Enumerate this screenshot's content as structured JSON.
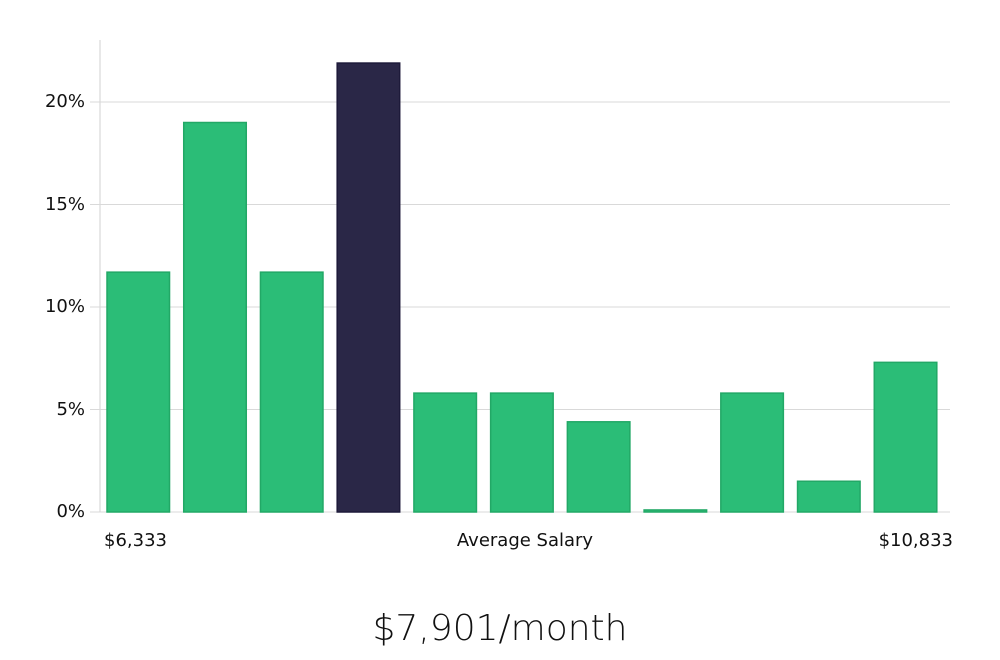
{
  "chart_data": {
    "type": "bar",
    "title": "",
    "xlabel": "Average Salary",
    "ylabel": "",
    "categories": [
      "bin1",
      "bin2",
      "bin3",
      "bin4",
      "bin5",
      "bin6",
      "bin7",
      "bin8",
      "bin9",
      "bin10",
      "bin11"
    ],
    "values": [
      11.7,
      19.0,
      11.7,
      21.9,
      5.8,
      5.8,
      4.4,
      0.1,
      5.8,
      1.5,
      7.3
    ],
    "highlight_index": 3,
    "ylim": [
      0,
      23
    ],
    "yticks": [
      0,
      5,
      10,
      15,
      20
    ],
    "ytick_labels": [
      "0%",
      "5%",
      "10%",
      "15%",
      "20%"
    ],
    "x_range_labels": {
      "min": "$6,333",
      "max": "$10,833"
    },
    "grid": true,
    "legend": "none",
    "colors": {
      "bar": "#2bbd77",
      "bar_edge": "#22a866",
      "highlight": "#2a2747",
      "highlight_edge": "#1d1a3a",
      "grid": "#d9d9d9"
    }
  },
  "labels": {
    "x_min": "$6,333",
    "x_center": "Average Salary",
    "x_max": "$10,833",
    "headline": "$7,901/month"
  }
}
